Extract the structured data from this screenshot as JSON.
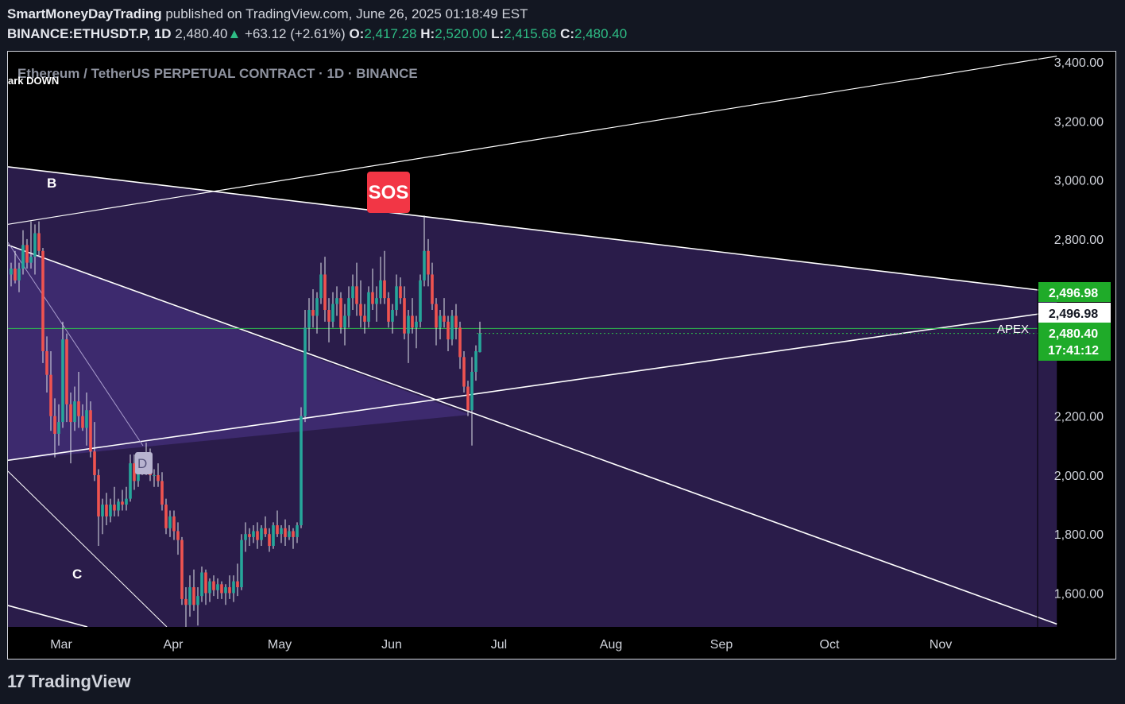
{
  "header": {
    "author": "SmartMoneyDayTrading",
    "published": "published on TradingView.com, June 26, 2025 01:18:49 EST",
    "symbol": "BINANCE:ETHUSDT.P, 1D",
    "last": "2,480.40",
    "change": "+63.12 (+2.61%)",
    "o_label": "O:",
    "o": "2,417.28",
    "h_label": "H:",
    "h": "2,520.00",
    "l_label": "L:",
    "l": "2,415.68",
    "c_label": "C:",
    "c": "2,480.40"
  },
  "chart_title": "Ethereum / TetherUS PERPETUAL CONTRACT · 1D · BINANCE",
  "annotations": {
    "mark_down": "ark DOWN",
    "b": "B",
    "c": "C",
    "d": "D",
    "sos": "SOS",
    "apex": "APEX"
  },
  "price_tags": {
    "tag1": "2,496.98",
    "tag2": "2,496.98",
    "tag3_price": "2,480.40",
    "tag3_time": "17:41:12"
  },
  "footer": {
    "brand": "TradingView"
  },
  "colors": {
    "background": "#000000",
    "up": "#26a69a",
    "down": "#ef5350",
    "sos": "#f23645",
    "price_tag": "#22ab22",
    "zone": "#3a2a6a"
  },
  "chart_data": {
    "type": "candlestick",
    "title": "Ethereum / TetherUS PERPETUAL CONTRACT · 1D · BINANCE",
    "y_ticks": [
      "3,400.00",
      "3,200.00",
      "3,000.00",
      "2,800.00",
      "2,200.00",
      "2,000.00",
      "1,800.00",
      "1,600.00"
    ],
    "y_tick_values": [
      3400,
      3200,
      3000,
      2800,
      2200,
      2000,
      1800,
      1600
    ],
    "x_ticks": [
      "Mar",
      "Apr",
      "May",
      "Jun",
      "Jul",
      "Aug",
      "Sep",
      "Oct",
      "Nov"
    ],
    "ylim": [
      1480,
      3430
    ],
    "last_price": 2480.4,
    "apex_level": 2496.98,
    "trendlines": [
      {
        "name": "upper",
        "from": [
          "2025-02-14",
          3045
        ],
        "to": [
          "2025-11-28",
          2620
        ]
      },
      {
        "name": "lower",
        "from": [
          "2025-02-14",
          2050
        ],
        "to": [
          "2025-11-28",
          2555
        ]
      },
      {
        "name": "diagonal",
        "from": [
          "2025-02-14",
          2780
        ],
        "to": [
          "2025-11-28",
          1495
        ]
      },
      {
        "name": "outer",
        "from": [
          "2025-02-14",
          2850
        ],
        "to": [
          "2025-11-28",
          3420
        ]
      }
    ],
    "candles": [
      [
        2680,
        2720,
        2640,
        2700
      ],
      [
        2700,
        2760,
        2650,
        2660
      ],
      [
        2660,
        2720,
        2620,
        2700
      ],
      [
        2700,
        2830,
        2680,
        2780
      ],
      [
        2780,
        2800,
        2700,
        2720
      ],
      [
        2720,
        2860,
        2700,
        2740
      ],
      [
        2740,
        2850,
        2680,
        2820
      ],
      [
        2820,
        2860,
        2740,
        2760
      ],
      [
        2760,
        2770,
        2380,
        2420
      ],
      [
        2420,
        2470,
        2280,
        2340
      ],
      [
        2340,
        2420,
        2150,
        2200
      ],
      [
        2200,
        2260,
        2060,
        2140
      ],
      [
        2140,
        2240,
        2100,
        2180
      ],
      [
        2180,
        2520,
        2160,
        2460
      ],
      [
        2460,
        2480,
        2180,
        2240
      ],
      [
        2240,
        2280,
        2040,
        2180
      ],
      [
        2180,
        2300,
        2150,
        2250
      ],
      [
        2250,
        2350,
        2160,
        2200
      ],
      [
        2200,
        2240,
        2150,
        2160
      ],
      [
        2160,
        2280,
        2100,
        2220
      ],
      [
        2220,
        2250,
        2060,
        2080
      ],
      [
        2080,
        2180,
        1980,
        2000
      ],
      [
        2000,
        2020,
        1760,
        1860
      ],
      [
        1860,
        1920,
        1800,
        1900
      ],
      [
        1900,
        1940,
        1830,
        1860
      ],
      [
        1860,
        1920,
        1840,
        1900
      ],
      [
        1900,
        1960,
        1860,
        1880
      ],
      [
        1880,
        1920,
        1860,
        1910
      ],
      [
        1910,
        1950,
        1880,
        1900
      ],
      [
        1900,
        1960,
        1880,
        1920
      ],
      [
        1920,
        2070,
        1910,
        2040
      ],
      [
        2040,
        2070,
        1950,
        1980
      ],
      [
        1980,
        2060,
        1960,
        2030
      ],
      [
        2030,
        2070,
        2000,
        2020
      ],
      [
        2020,
        2110,
        2000,
        2060
      ],
      [
        2060,
        2090,
        1980,
        2000
      ],
      [
        2000,
        2020,
        1960,
        2000
      ],
      [
        2000,
        2040,
        1960,
        1980
      ],
      [
        1980,
        2010,
        1880,
        1900
      ],
      [
        1900,
        1920,
        1800,
        1820
      ],
      [
        1820,
        1880,
        1790,
        1860
      ],
      [
        1860,
        1880,
        1780,
        1810
      ],
      [
        1810,
        1840,
        1730,
        1780
      ],
      [
        1780,
        1790,
        1560,
        1580
      ],
      [
        1580,
        1620,
        1480,
        1560
      ],
      [
        1560,
        1660,
        1520,
        1620
      ],
      [
        1620,
        1680,
        1540,
        1560
      ],
      [
        1560,
        1620,
        1490,
        1590
      ],
      [
        1590,
        1690,
        1570,
        1670
      ],
      [
        1670,
        1680,
        1560,
        1600
      ],
      [
        1600,
        1650,
        1570,
        1640
      ],
      [
        1640,
        1660,
        1590,
        1610
      ],
      [
        1610,
        1650,
        1580,
        1630
      ],
      [
        1630,
        1640,
        1580,
        1600
      ],
      [
        1600,
        1630,
        1560,
        1620
      ],
      [
        1620,
        1660,
        1580,
        1600
      ],
      [
        1600,
        1660,
        1570,
        1640
      ],
      [
        1640,
        1700,
        1590,
        1620
      ],
      [
        1620,
        1800,
        1610,
        1780
      ],
      [
        1780,
        1840,
        1740,
        1800
      ],
      [
        1800,
        1820,
        1760,
        1790
      ],
      [
        1790,
        1830,
        1770,
        1810
      ],
      [
        1810,
        1840,
        1750,
        1780
      ],
      [
        1780,
        1830,
        1760,
        1820
      ],
      [
        1820,
        1860,
        1790,
        1800
      ],
      [
        1800,
        1820,
        1740,
        1760
      ],
      [
        1760,
        1840,
        1750,
        1830
      ],
      [
        1830,
        1880,
        1790,
        1800
      ],
      [
        1800,
        1830,
        1770,
        1820
      ],
      [
        1820,
        1850,
        1760,
        1790
      ],
      [
        1790,
        1830,
        1780,
        1810
      ],
      [
        1810,
        1820,
        1750,
        1790
      ],
      [
        1790,
        1840,
        1770,
        1830
      ],
      [
        1830,
        2230,
        1820,
        2200
      ],
      [
        2200,
        2560,
        2180,
        2500
      ],
      [
        2500,
        2600,
        2420,
        2560
      ],
      [
        2560,
        2630,
        2500,
        2540
      ],
      [
        2540,
        2620,
        2480,
        2600
      ],
      [
        2600,
        2720,
        2580,
        2680
      ],
      [
        2680,
        2740,
        2520,
        2560
      ],
      [
        2560,
        2600,
        2450,
        2520
      ],
      [
        2520,
        2620,
        2500,
        2580
      ],
      [
        2580,
        2640,
        2540,
        2600
      ],
      [
        2600,
        2620,
        2480,
        2500
      ],
      [
        2500,
        2580,
        2440,
        2540
      ],
      [
        2540,
        2640,
        2500,
        2600
      ],
      [
        2600,
        2680,
        2560,
        2640
      ],
      [
        2640,
        2720,
        2540,
        2580
      ],
      [
        2580,
        2660,
        2500,
        2540
      ],
      [
        2540,
        2580,
        2480,
        2520
      ],
      [
        2520,
        2640,
        2500,
        2620
      ],
      [
        2620,
        2700,
        2560,
        2580
      ],
      [
        2580,
        2640,
        2520,
        2600
      ],
      [
        2600,
        2740,
        2580,
        2660
      ],
      [
        2660,
        2760,
        2580,
        2600
      ],
      [
        2600,
        2620,
        2500,
        2520
      ],
      [
        2520,
        2580,
        2480,
        2560
      ],
      [
        2560,
        2680,
        2540,
        2640
      ],
      [
        2640,
        2670,
        2580,
        2600
      ],
      [
        2600,
        2640,
        2460,
        2480
      ],
      [
        2480,
        2560,
        2380,
        2540
      ],
      [
        2540,
        2600,
        2480,
        2500
      ],
      [
        2500,
        2540,
        2430,
        2520
      ],
      [
        2520,
        2680,
        2500,
        2660
      ],
      [
        2660,
        2880,
        2640,
        2760
      ],
      [
        2760,
        2800,
        2640,
        2680
      ],
      [
        2680,
        2720,
        2560,
        2580
      ],
      [
        2580,
        2600,
        2440,
        2500
      ],
      [
        2500,
        2560,
        2460,
        2540
      ],
      [
        2540,
        2600,
        2500,
        2520
      ],
      [
        2520,
        2540,
        2420,
        2460
      ],
      [
        2460,
        2560,
        2440,
        2540
      ],
      [
        2540,
        2580,
        2460,
        2500
      ],
      [
        2500,
        2520,
        2360,
        2400
      ],
      [
        2400,
        2420,
        2280,
        2300
      ],
      [
        2300,
        2320,
        2200,
        2220
      ],
      [
        2220,
        2400,
        2100,
        2350
      ],
      [
        2350,
        2440,
        2320,
        2420
      ],
      [
        2417,
        2520,
        2416,
        2480
      ]
    ]
  }
}
